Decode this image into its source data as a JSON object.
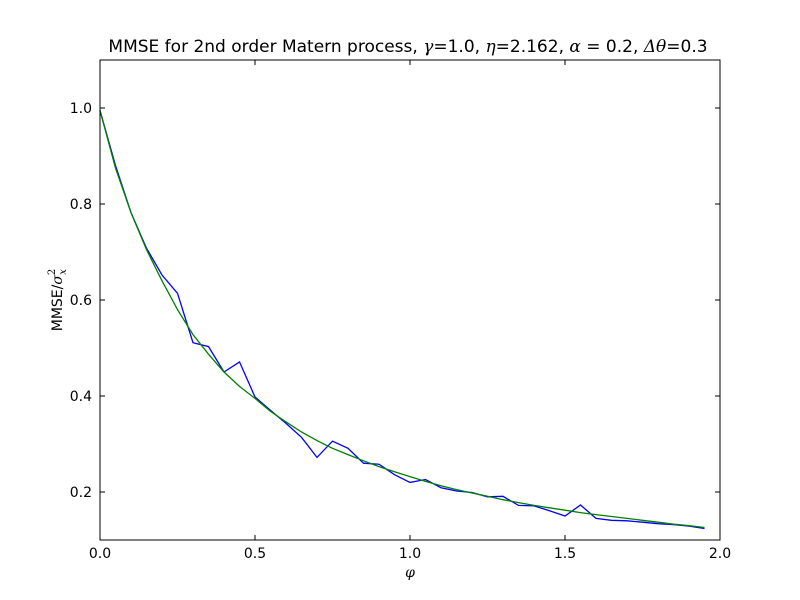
{
  "chart_data": {
    "type": "line",
    "title_parts": [
      {
        "text": "MMSE for 2nd order Matern process, ",
        "math": false
      },
      {
        "text": "γ",
        "math": true
      },
      {
        "text": "=1.0, ",
        "math": false
      },
      {
        "text": "η",
        "math": true
      },
      {
        "text": "=2.162, ",
        "math": false
      },
      {
        "text": "α",
        "math": true
      },
      {
        "text": " = 0.2, ",
        "math": false
      },
      {
        "text": "Δθ",
        "math": true
      },
      {
        "text": "=0.3",
        "math": false
      }
    ],
    "xlabel": "φ",
    "ylabel": {
      "prefix": "MMSE/",
      "symbol": "σ",
      "sup": "2",
      "sub": "x"
    },
    "xlim": [
      0.0,
      2.0
    ],
    "ylim": [
      0.1,
      1.1
    ],
    "x_ticks": [
      0.0,
      0.5,
      1.0,
      1.5,
      2.0
    ],
    "x_tick_labels": [
      "0.0",
      "0.5",
      "1.0",
      "1.5",
      "2.0"
    ],
    "y_ticks": [
      0.2,
      0.4,
      0.6,
      0.8,
      1.0
    ],
    "y_tick_labels": [
      "0.2",
      "0.4",
      "0.6",
      "0.8",
      "1.0"
    ],
    "grid": false,
    "series": [
      {
        "color": "#0000ff",
        "x": [
          0.0,
          0.05,
          0.1,
          0.15,
          0.2,
          0.25,
          0.3,
          0.35,
          0.4,
          0.45,
          0.5,
          0.55,
          0.6,
          0.65,
          0.7,
          0.75,
          0.8,
          0.85,
          0.9,
          0.95,
          1.0,
          1.05,
          1.1,
          1.15,
          1.2,
          1.25,
          1.3,
          1.35,
          1.4,
          1.45,
          1.5,
          1.55,
          1.6,
          1.65,
          1.7,
          1.75,
          1.8,
          1.85,
          1.9,
          1.95
        ],
        "y": [
          0.995,
          0.88,
          0.782,
          0.708,
          0.652,
          0.614,
          0.511,
          0.503,
          0.45,
          0.471,
          0.398,
          0.37,
          0.343,
          0.314,
          0.272,
          0.306,
          0.291,
          0.26,
          0.258,
          0.236,
          0.22,
          0.226,
          0.209,
          0.202,
          0.199,
          0.19,
          0.191,
          0.172,
          0.171,
          0.161,
          0.15,
          0.173,
          0.145,
          0.141,
          0.14,
          0.137,
          0.134,
          0.132,
          0.129,
          0.124
        ]
      },
      {
        "color": "#008000",
        "x": [
          0.0,
          0.05,
          0.1,
          0.15,
          0.2,
          0.25,
          0.3,
          0.35,
          0.4,
          0.45,
          0.5,
          0.55,
          0.6,
          0.65,
          0.7,
          0.75,
          0.8,
          0.85,
          0.9,
          0.95,
          1.0,
          1.05,
          1.1,
          1.15,
          1.2,
          1.25,
          1.3,
          1.35,
          1.4,
          1.45,
          1.5,
          1.55,
          1.6,
          1.65,
          1.7,
          1.75,
          1.8,
          1.85,
          1.9,
          1.95
        ],
        "y": [
          0.995,
          0.875,
          0.782,
          0.705,
          0.64,
          0.58,
          0.528,
          0.487,
          0.45,
          0.42,
          0.395,
          0.368,
          0.346,
          0.325,
          0.307,
          0.291,
          0.278,
          0.265,
          0.253,
          0.242,
          0.232,
          0.222,
          0.213,
          0.205,
          0.198,
          0.191,
          0.184,
          0.178,
          0.172,
          0.167,
          0.162,
          0.157,
          0.153,
          0.149,
          0.145,
          0.141,
          0.137,
          0.133,
          0.13,
          0.126
        ]
      }
    ]
  }
}
